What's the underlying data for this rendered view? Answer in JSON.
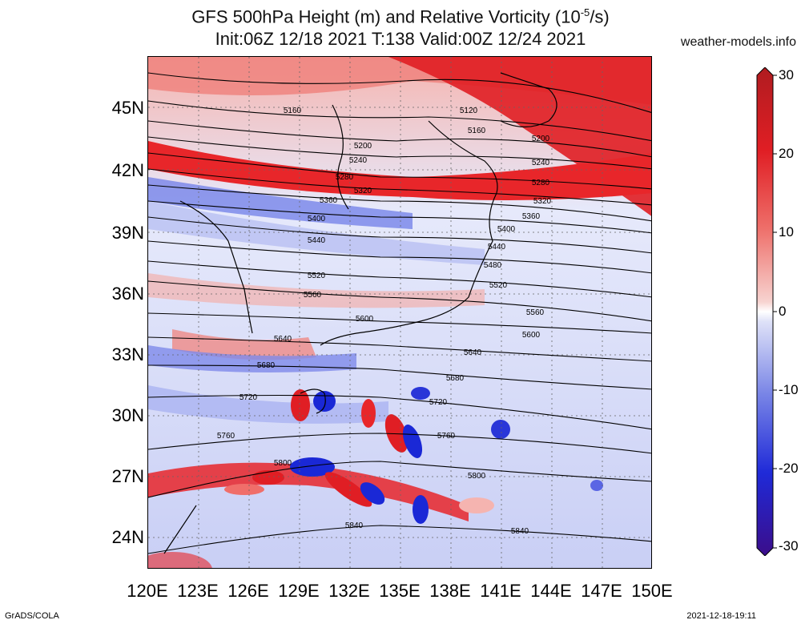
{
  "header": {
    "title_line1": "GFS 500hPa Height (m) and Relative Vorticity (10",
    "title_exp": "-5",
    "title_line1_end": "/s)",
    "title_line2": "Init:06Z 12/18 2021 T:138 Valid:00Z 12/24 2021",
    "site": "weather-models.info"
  },
  "map": {
    "lon_ticks": [
      "120E",
      "123E",
      "126E",
      "129E",
      "132E",
      "135E",
      "138E",
      "141E",
      "144E",
      "147E",
      "150E"
    ],
    "lat_ticks": [
      "45N",
      "42N",
      "39N",
      "36N",
      "33N",
      "30N",
      "27N",
      "24N"
    ],
    "contours": [
      "5120",
      "5160",
      "5200",
      "5240",
      "5280",
      "5320",
      "5360",
      "5400",
      "5440",
      "5480",
      "5520",
      "5560",
      "5600",
      "5640",
      "5680",
      "5720",
      "5760",
      "5800",
      "5840"
    ]
  },
  "colorbar": {
    "ticks": [
      "30",
      "20",
      "10",
      "0",
      "-10",
      "-20",
      "-30"
    ]
  },
  "footer": {
    "left": "GrADS/COLA",
    "right": "2021-12-18-19:11"
  },
  "colors": {
    "positive": "#e8262a",
    "negative": "#1a28d6",
    "neutral": "#ffffff"
  }
}
